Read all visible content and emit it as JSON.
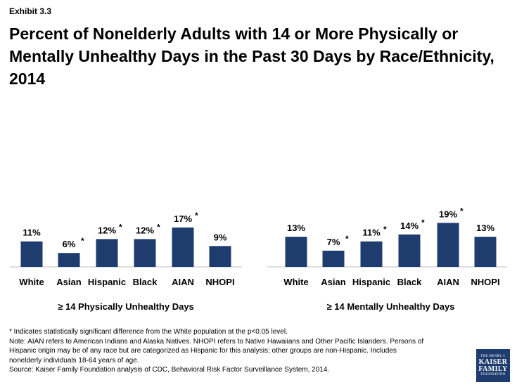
{
  "header": {
    "exhibit": "Exhibit 3.3",
    "title": "Percent of Nonelderly Adults with 14 or More Physically or Mentally Unhealthy Days in the Past 30 Days by Race/Ethnicity, 2014"
  },
  "chart_data": [
    {
      "type": "bar",
      "title": "",
      "xlabel": "≥ 14 Physically Unhealthy Days",
      "ylabel": "",
      "categories": [
        "White",
        "Asian",
        "Hispanic",
        "Black",
        "AIAN",
        "NHOPI"
      ],
      "values": [
        11,
        6,
        12,
        12,
        17,
        9
      ],
      "labels": [
        "11%",
        "6%",
        "12%",
        "12%",
        "17%",
        "9%"
      ],
      "significant": [
        false,
        true,
        true,
        true,
        true,
        false
      ],
      "color": "#1f3c6e",
      "grid": false
    },
    {
      "type": "bar",
      "title": "",
      "xlabel": "≥ 14 Mentally Unhealthy Days",
      "ylabel": "",
      "categories": [
        "White",
        "Asian",
        "Hispanic",
        "Black",
        "AIAN",
        "NHOPI"
      ],
      "values": [
        13,
        7,
        11,
        14,
        19,
        13
      ],
      "labels": [
        "13%",
        "7%",
        "11%",
        "14%",
        "19%",
        "13%"
      ],
      "significant": [
        false,
        true,
        true,
        true,
        true,
        false
      ],
      "color": "#1f3c6e",
      "grid": false
    }
  ],
  "notes": {
    "line1": "* Indicates statistically significant difference from the White population at the p<0.05 level.",
    "line2": "Note: AIAN refers to American Indians and Alaska Natives. NHOPI refers to Native Hawaiians and Other Pacific Islanders. Persons of",
    "line3": "Hispanic origin may be of any race but are categorized as Hispanic for this analysis; other groups are non-Hispanic. Includes",
    "line4": "nonelderly individuals 18-64 years of age.",
    "line5": "Source: Kaiser Family Foundation analysis of CDC, Behavioral Risk Factor Surveillance System, 2014."
  },
  "logo": {
    "line1": "THE HENRY J.",
    "line2": "KAISER",
    "line3": "FAMILY",
    "line4": "FOUNDATION"
  }
}
